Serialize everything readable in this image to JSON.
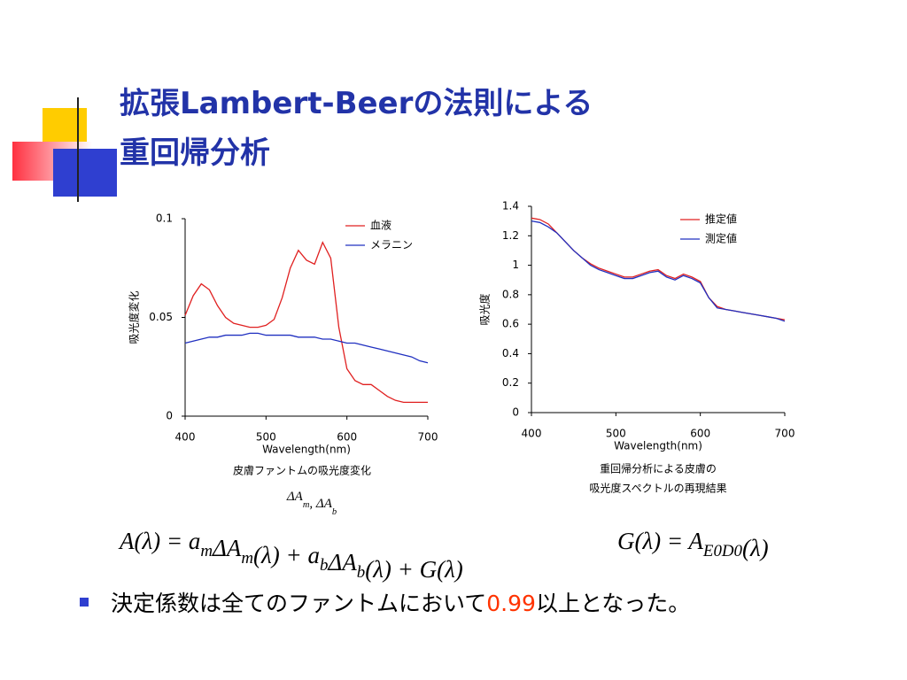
{
  "slide": {
    "title": [
      "拡張Lambert-Beerの法則による",
      "重回帰分析"
    ],
    "caption_delta": [
      {
        "text": "ΔA",
        "sub": "m"
      },
      {
        "text": ",  ΔA",
        "sub": "b"
      }
    ],
    "formula": [
      {
        "text": "A(λ) = a",
        "sub": "m"
      },
      {
        "text": "ΔA",
        "sub": "m"
      },
      {
        "text": "(λ) + a",
        "sub": "b"
      },
      {
        "text": "ΔA",
        "sub": "b"
      },
      {
        "text": "(λ) + G(λ)"
      }
    ],
    "formula2": [
      {
        "text": "G(λ) = A",
        "sub": "E0D0"
      },
      {
        "text": "(λ)"
      }
    ],
    "bullet": [
      "決定係数は全てのファントムにおいて",
      "0.99",
      "以上となった。"
    ]
  },
  "chart_data": [
    {
      "type": "line",
      "ylabel": "吸光度変化",
      "xlabel": "Wavelength(nm)",
      "caption": [
        "皮膚ファントムの吸光度変化"
      ],
      "xlim": [
        400,
        700
      ],
      "xticks": [
        400,
        500,
        600,
        700
      ],
      "ylim": [
        0,
        0.1
      ],
      "yticks": [
        0,
        0.05,
        0.1
      ],
      "legend": "upper right",
      "x": [
        400,
        410,
        420,
        430,
        440,
        450,
        460,
        470,
        480,
        490,
        500,
        510,
        520,
        530,
        540,
        550,
        560,
        570,
        580,
        590,
        600,
        610,
        620,
        630,
        640,
        650,
        660,
        670,
        680,
        690,
        700
      ],
      "series": [
        {
          "name": "血液",
          "color": "#e02020",
          "values": [
            0.051,
            0.061,
            0.067,
            0.064,
            0.056,
            0.05,
            0.047,
            0.046,
            0.045,
            0.045,
            0.046,
            0.049,
            0.06,
            0.075,
            0.084,
            0.079,
            0.077,
            0.088,
            0.08,
            0.045,
            0.024,
            0.018,
            0.016,
            0.016,
            0.013,
            0.01,
            0.008,
            0.007,
            0.007,
            0.007,
            0.007
          ]
        },
        {
          "name": "メラニン",
          "color": "#2030c0",
          "values": [
            0.037,
            0.038,
            0.039,
            0.04,
            0.04,
            0.041,
            0.041,
            0.041,
            0.042,
            0.042,
            0.041,
            0.041,
            0.041,
            0.041,
            0.04,
            0.04,
            0.04,
            0.039,
            0.039,
            0.038,
            0.037,
            0.037,
            0.036,
            0.035,
            0.034,
            0.033,
            0.032,
            0.031,
            0.03,
            0.028,
            0.027
          ]
        }
      ]
    },
    {
      "type": "line",
      "ylabel": "吸光度",
      "xlabel": "Wavelength(nm)",
      "caption": [
        "重回帰分析による皮膚の",
        "吸光度スペクトルの再現結果"
      ],
      "xlim": [
        400,
        700
      ],
      "xticks": [
        400,
        500,
        600,
        700
      ],
      "ylim": [
        0,
        1.4
      ],
      "yticks": [
        0,
        0.2,
        0.4,
        0.6,
        0.8,
        1,
        1.2,
        1.4
      ],
      "legend": "upper right",
      "x": [
        400,
        410,
        420,
        430,
        440,
        450,
        460,
        470,
        480,
        490,
        500,
        510,
        520,
        530,
        540,
        550,
        560,
        570,
        580,
        590,
        600,
        610,
        620,
        630,
        640,
        650,
        660,
        670,
        680,
        690,
        700
      ],
      "series": [
        {
          "name": "推定値",
          "color": "#e02020",
          "values": [
            1.32,
            1.31,
            1.28,
            1.22,
            1.16,
            1.1,
            1.05,
            1.01,
            0.98,
            0.96,
            0.94,
            0.92,
            0.92,
            0.94,
            0.96,
            0.97,
            0.93,
            0.91,
            0.94,
            0.92,
            0.89,
            0.78,
            0.72,
            0.7,
            0.69,
            0.68,
            0.67,
            0.66,
            0.65,
            0.64,
            0.63
          ]
        },
        {
          "name": "測定値",
          "color": "#2030c0",
          "values": [
            1.3,
            1.29,
            1.26,
            1.22,
            1.16,
            1.1,
            1.05,
            1.0,
            0.97,
            0.95,
            0.93,
            0.91,
            0.91,
            0.93,
            0.95,
            0.96,
            0.92,
            0.9,
            0.93,
            0.91,
            0.88,
            0.78,
            0.71,
            0.7,
            0.69,
            0.68,
            0.67,
            0.66,
            0.65,
            0.64,
            0.62
          ]
        }
      ]
    }
  ]
}
